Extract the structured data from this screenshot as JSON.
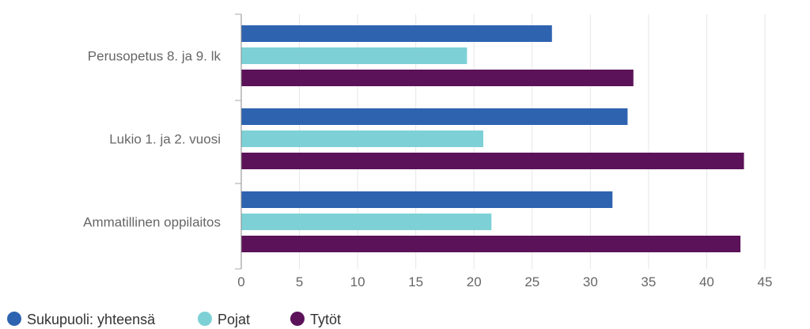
{
  "chart_data": {
    "type": "bar",
    "orientation": "horizontal",
    "categories": [
      "Perusopetus 8. ja 9. lk",
      "Lukio 1. ja 2. vuosi",
      "Ammatillinen oppilaitos"
    ],
    "series": [
      {
        "name": "Sukupuoli: yhteensä",
        "color": "#2e63b0",
        "values": [
          26.7,
          33.2,
          31.9
        ]
      },
      {
        "name": "Pojat",
        "color": "#7dd1d6",
        "values": [
          19.4,
          20.8,
          21.5
        ]
      },
      {
        "name": "Tytöt",
        "color": "#5b1259",
        "values": [
          33.7,
          43.2,
          42.9
        ]
      }
    ],
    "xlim": [
      0,
      45
    ],
    "xticks": [
      0,
      5,
      10,
      15,
      20,
      25,
      30,
      35,
      40,
      45
    ],
    "grid": true,
    "legend_position": "bottom-left"
  }
}
